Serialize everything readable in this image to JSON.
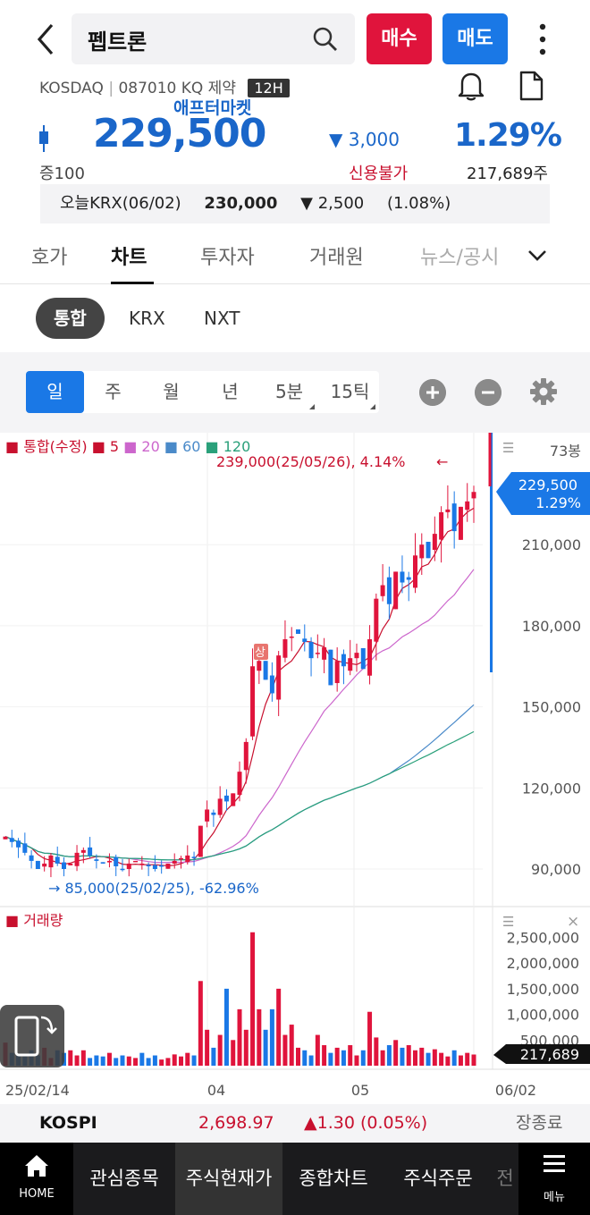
{
  "header": {
    "stock_name": "펩트론",
    "buy_label": "매수",
    "sell_label": "매도"
  },
  "info": {
    "market": "KOSDAQ",
    "code_sector": "087010 KQ 제약",
    "session_badge": "12H",
    "after_market": "애프터마켓",
    "price": "229,500",
    "change": "3,000",
    "change_pct": "1.29%",
    "margin": "증100",
    "credit": "신용불가",
    "volume": "217,689주",
    "krx_label": "오늘KRX(06/02)",
    "krx_price": "230,000",
    "krx_change": "▼ 2,500",
    "krx_pct": "(1.08%)"
  },
  "tabs": [
    "호가",
    "차트",
    "투자자",
    "거래원",
    "뉴스/공시"
  ],
  "markets": [
    "통합",
    "KRX",
    "NXT"
  ],
  "periods": [
    "일",
    "주",
    "월",
    "년",
    "5분",
    "15틱"
  ],
  "colors": {
    "up": "#e0143c",
    "down": "#1a78e6",
    "ma5": "#c8102e",
    "ma20": "#cc66cc",
    "ma60": "#4a8ac9",
    "ma120": "#2aa07a"
  },
  "chart_data": {
    "type": "candlestick",
    "legend": {
      "main": "통합(수정)",
      "ma5": "5",
      "ma20": "20",
      "ma60": "60",
      "ma120": "120"
    },
    "bars_label": "73봉",
    "y_ticks": [
      "210,000",
      "180,000",
      "150,000",
      "120,000",
      "90,000"
    ],
    "y_tick_values": [
      210000,
      180000,
      150000,
      120000,
      90000
    ],
    "current_price": "229,500",
    "current_pct": "1.29%",
    "max_note": "239,000(25/05/26), 4.14%",
    "min_note": "85,000(25/02/25), -62.96%",
    "limit_up_marker": "상",
    "x_labels": [
      "25/02/14",
      "04",
      "05",
      "06/02"
    ],
    "closes": [
      102000,
      100000,
      98000,
      96000,
      93000,
      90000,
      92000,
      95000,
      92000,
      90000,
      92000,
      96000,
      97000,
      95000,
      93000,
      92000,
      93000,
      91000,
      90000,
      92000,
      93000,
      92000,
      91000,
      90000,
      91000,
      92000,
      93000,
      94000,
      95000,
      94000,
      106000,
      112000,
      110000,
      116000,
      115000,
      118000,
      126000,
      137000,
      165000,
      167000,
      160000,
      155000,
      169000,
      175000,
      176000,
      177000,
      174000,
      168000,
      170000,
      172000,
      158000,
      167000,
      165000,
      168000,
      170000,
      164000,
      175000,
      190000,
      195000,
      188000,
      200000,
      196000,
      197000,
      206000,
      210000,
      205000,
      214000,
      222000,
      223000,
      215000,
      224000,
      226000,
      229500
    ],
    "volume_title": "거래량",
    "volume_ticks": [
      "2,500,000",
      "2,000,000",
      "1,500,000",
      "1,000,000",
      "500,000"
    ],
    "volume_tick_values": [
      2500000,
      2000000,
      1500000,
      1000000,
      500000
    ],
    "volume_current": "217,689",
    "volumes": [
      450000,
      250000,
      220000,
      180000,
      300000,
      200000,
      350000,
      150000,
      300000,
      250000,
      300000,
      200000,
      300000,
      150000,
      200000,
      180000,
      250000,
      150000,
      200000,
      180000,
      150000,
      250000,
      150000,
      200000,
      120000,
      150000,
      220000,
      180000,
      250000,
      200000,
      1650000,
      700000,
      350000,
      600000,
      1500000,
      500000,
      1100000,
      700000,
      2600000,
      1100000,
      700000,
      1100000,
      1500000,
      600000,
      800000,
      350000,
      300000,
      200000,
      600000,
      400000,
      250000,
      350000,
      300000,
      400000,
      200000,
      300000,
      1050000,
      550000,
      300000,
      400000,
      500000,
      350000,
      400000,
      300000,
      350000,
      250000,
      320000,
      250000,
      180000,
      300000,
      200000,
      250000,
      217689
    ]
  },
  "kospi": {
    "label": "KOSPI",
    "value": "2,698.97",
    "change": "1.30 (0.05%)",
    "status": "장종료"
  },
  "bottom_nav": {
    "home": "HOME",
    "items": [
      "관심종목",
      "주식현재가",
      "종합차트",
      "주식주문",
      "전"
    ],
    "menu": "메뉴"
  }
}
